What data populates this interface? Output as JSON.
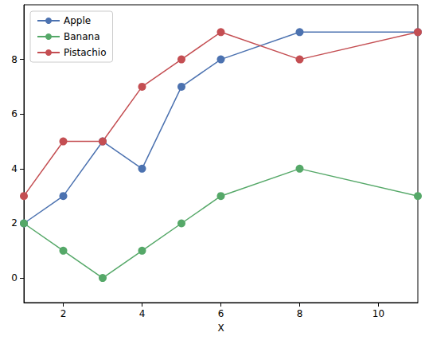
{
  "chart_data": {
    "type": "line",
    "xlabel": "X",
    "x": [
      1,
      2,
      3,
      4,
      5,
      6,
      8,
      11
    ],
    "series": [
      {
        "name": "Apple",
        "color": "#4c72b0",
        "values": [
          2,
          3,
          5,
          4,
          7,
          8,
          9,
          9
        ]
      },
      {
        "name": "Banana",
        "color": "#55a868",
        "values": [
          2,
          1,
          0,
          1,
          2,
          3,
          4,
          3
        ]
      },
      {
        "name": "Pistachio",
        "color": "#c44e52",
        "values": [
          3,
          5,
          5,
          7,
          8,
          9,
          8,
          9
        ]
      }
    ],
    "xlim": [
      1,
      11
    ],
    "xticks": [
      2,
      4,
      6,
      8,
      10
    ],
    "ylim": [
      -0.9,
      10
    ],
    "yticks": [
      0,
      2,
      4,
      6,
      8
    ],
    "grid": false,
    "legend": "upper left",
    "marker": "circle"
  }
}
